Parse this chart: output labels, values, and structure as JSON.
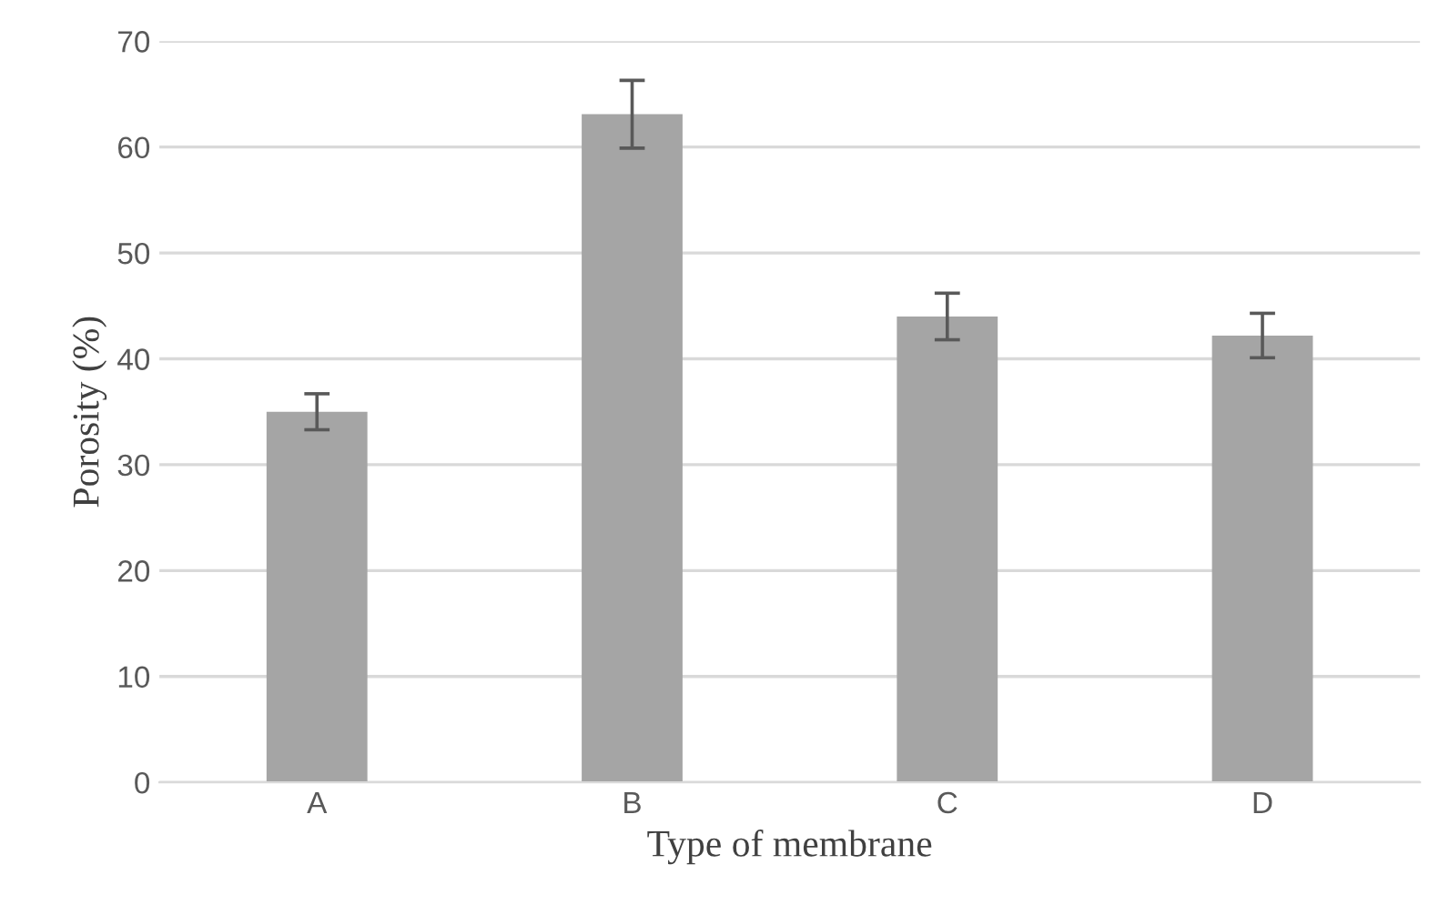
{
  "chart_data": {
    "type": "bar",
    "xlabel": "Type of membrane",
    "ylabel": "Porosity (%)",
    "categories": [
      "A",
      "B",
      "C",
      "D"
    ],
    "values": [
      35.0,
      63.1,
      44.0,
      42.2
    ],
    "errors": [
      1.7,
      3.2,
      2.2,
      2.1
    ],
    "color": "#a5a5a5",
    "ylim": [
      0,
      70
    ],
    "yticks": [
      0,
      10,
      20,
      30,
      40,
      50,
      60,
      70
    ],
    "grid": "y"
  }
}
